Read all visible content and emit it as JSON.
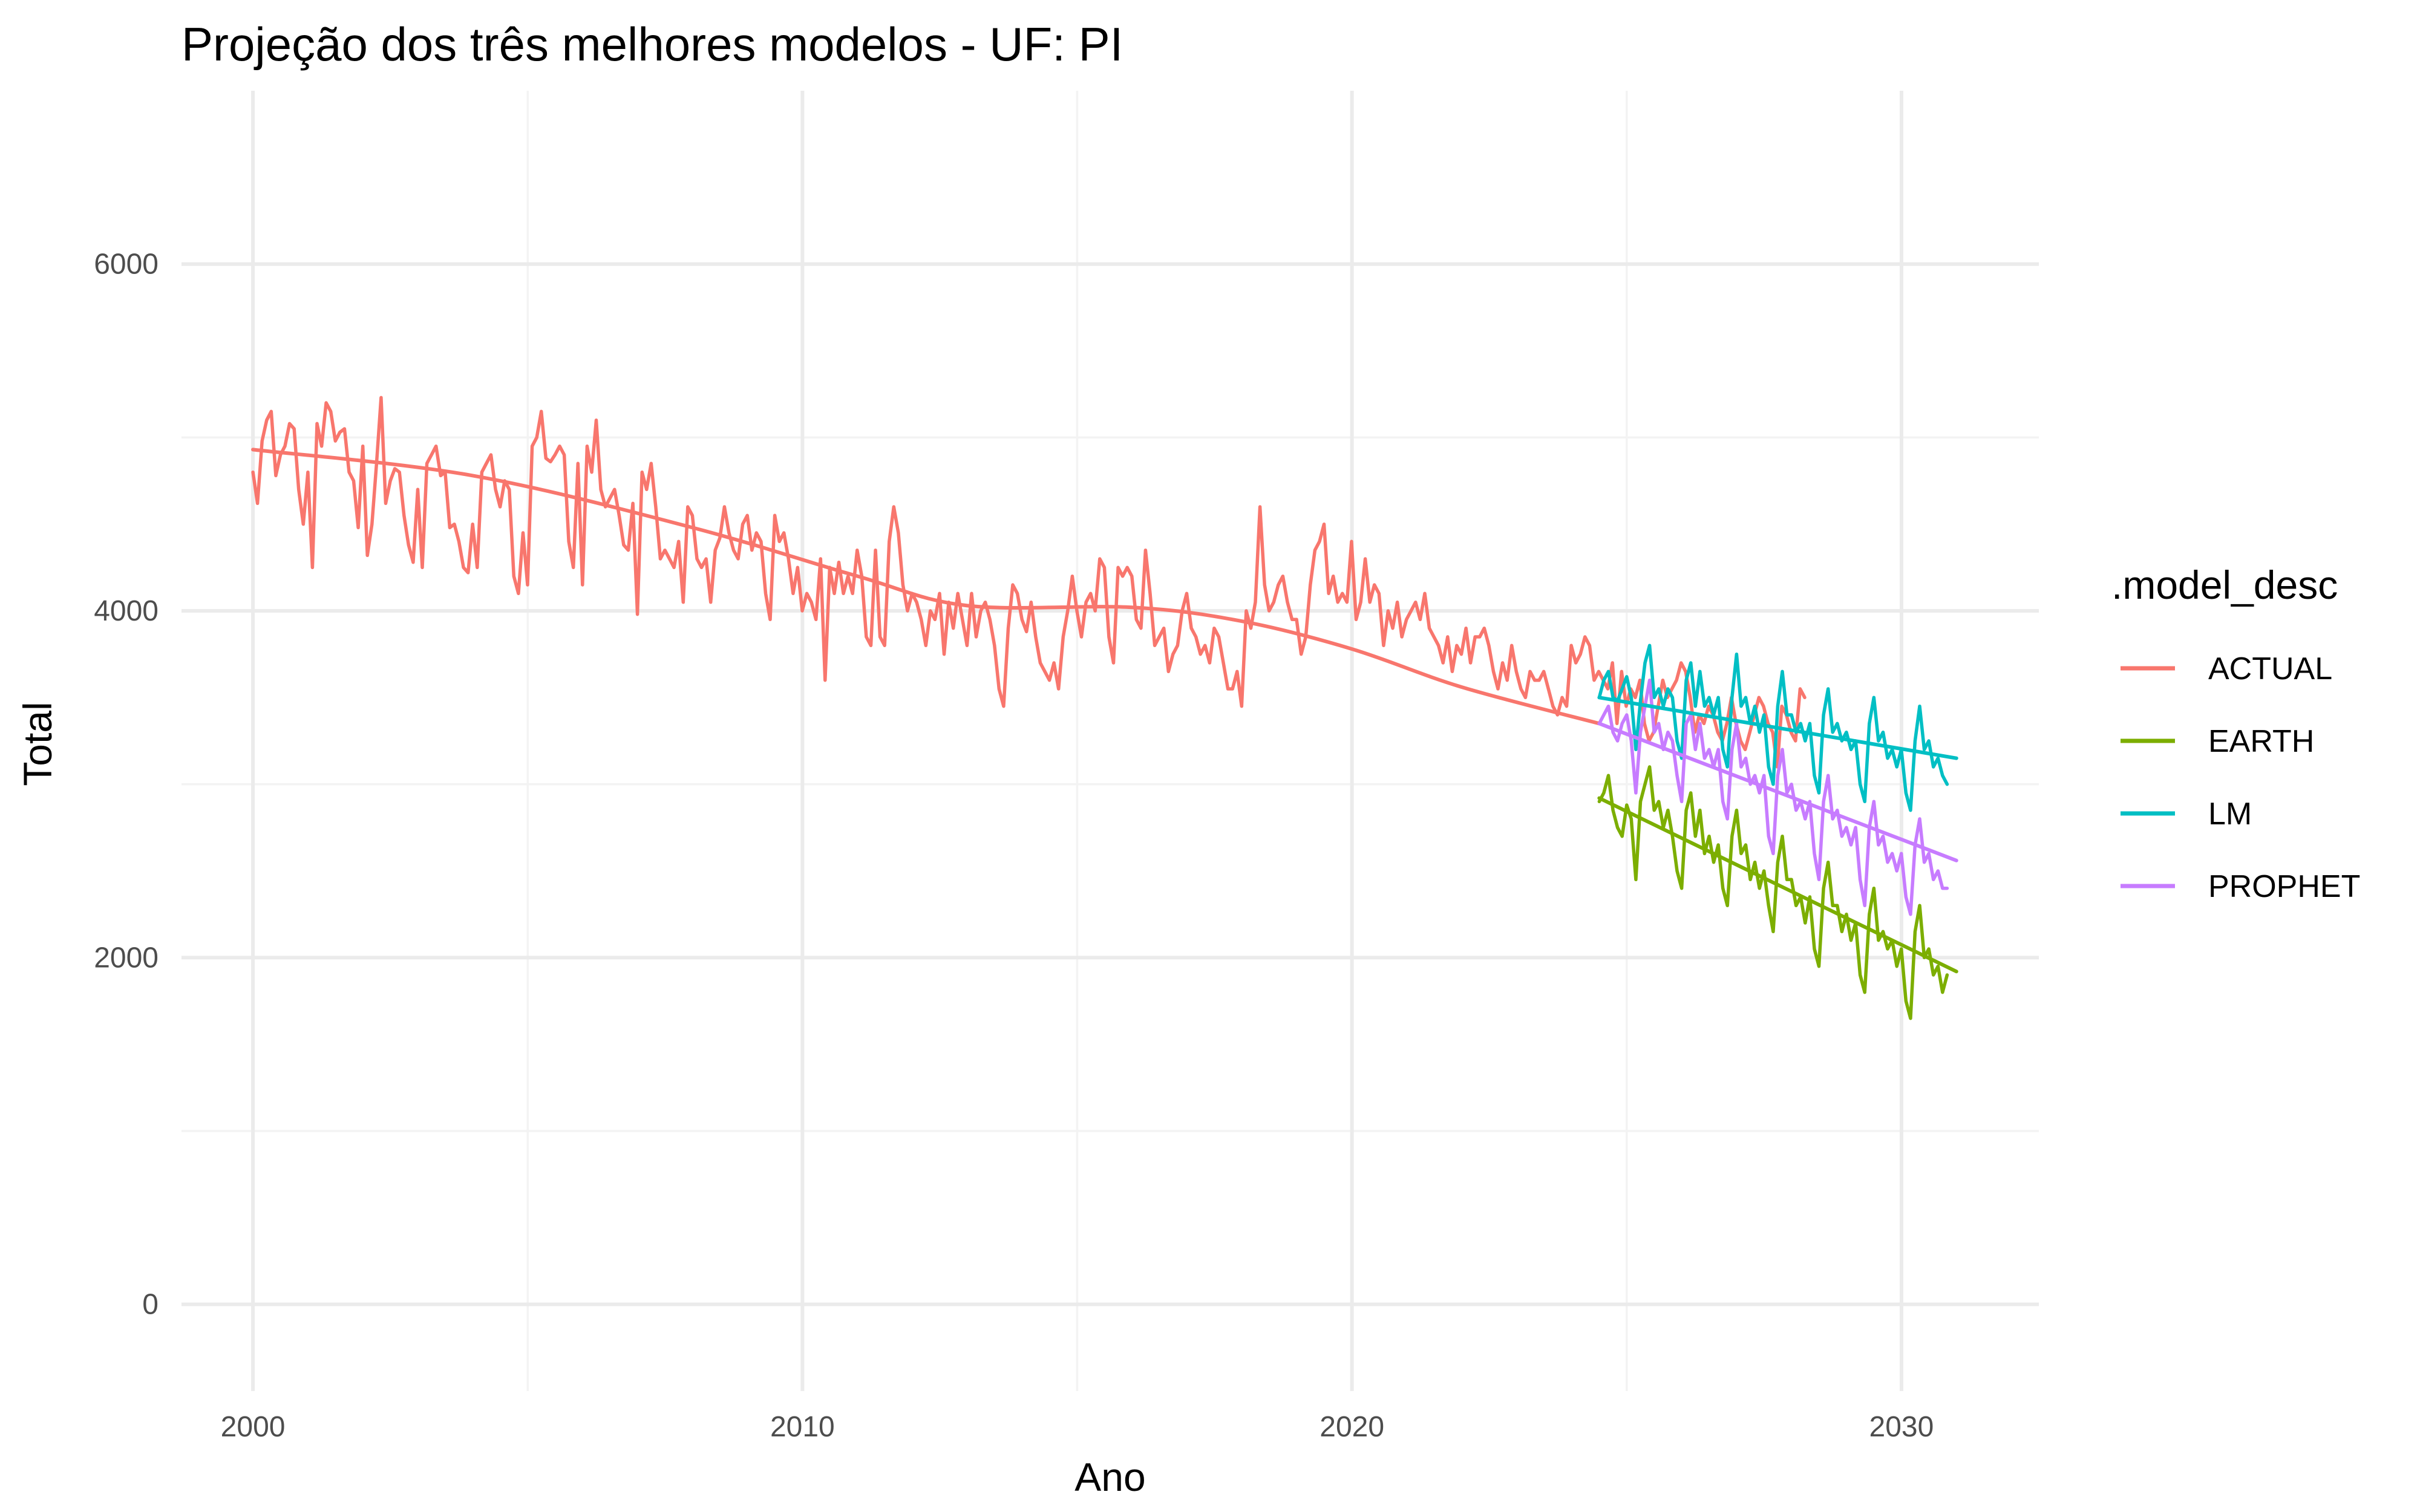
{
  "chart_data": {
    "type": "line",
    "title": "Projeção dos três melhores modelos - UF: PI",
    "xlabel": "Ano",
    "ylabel": "Total",
    "xlim": [
      1998.7,
      2032.5
    ],
    "ylim": [
      -500,
      7000
    ],
    "x_ticks": [
      2000,
      2010,
      2020,
      2030
    ],
    "y_ticks": [
      0,
      2000,
      4000,
      6000
    ],
    "grid": true,
    "legend": {
      "title": ".model_desc",
      "position": "right",
      "entries": [
        {
          "label": "ACTUAL",
          "color": "#F8766D"
        },
        {
          "label": "EARTH",
          "color": "#7CAE00"
        },
        {
          "label": "LM",
          "color": "#00BFC4"
        },
        {
          "label": "PROPHET",
          "color": "#C77CFF"
        }
      ]
    },
    "series": [
      {
        "name": "ACTUAL",
        "color": "#F8766D",
        "x_start": 2000.0,
        "step": 0.0833,
        "values": [
          4800,
          4620,
          4980,
          5100,
          5150,
          4780,
          4900,
          4950,
          5080,
          5050,
          4700,
          4500,
          4800,
          4250,
          5080,
          4950,
          5200,
          5150,
          4980,
          5030,
          5050,
          4800,
          4750,
          4480,
          4950,
          4320,
          4500,
          4850,
          5230,
          4620,
          4750,
          4820,
          4800,
          4550,
          4380,
          4280,
          4700,
          4250,
          4850,
          4900,
          4950,
          4780,
          4800,
          4480,
          4500,
          4400,
          4250,
          4220,
          4500,
          4250,
          4800,
          4850,
          4900,
          4700,
          4600,
          4750,
          4700,
          4200,
          4100,
          4450,
          4150,
          4950,
          5000,
          5150,
          4880,
          4860,
          4900,
          4950,
          4900,
          4400,
          4250,
          4850,
          4150,
          4950,
          4800,
          5100,
          4700,
          4600,
          4650,
          4700,
          4550,
          4380,
          4350,
          4620,
          3980,
          4800,
          4700,
          4850,
          4600,
          4300,
          4350,
          4300,
          4250,
          4400,
          4050,
          4600,
          4550,
          4300,
          4250,
          4300,
          4050,
          4350,
          4420,
          4600,
          4450,
          4350,
          4300,
          4500,
          4550,
          4350,
          4450,
          4400,
          4100,
          3950,
          4550,
          4400,
          4450,
          4300,
          4100,
          4250,
          4000,
          4100,
          4050,
          3950,
          4300,
          3600,
          4250,
          4100,
          4280,
          4100,
          4200,
          4100,
          4350,
          4200,
          3850,
          3800,
          4350,
          3850,
          3800,
          4400,
          4600,
          4450,
          4150,
          4000,
          4100,
          4050,
          3950,
          3800,
          4000,
          3950,
          4100,
          3750,
          4050,
          3900,
          4100,
          3950,
          3800,
          4100,
          3850,
          4000,
          4050,
          3950,
          3800,
          3550,
          3450,
          3900,
          4150,
          4100,
          3950,
          3880,
          4050,
          3850,
          3700,
          3650,
          3600,
          3700,
          3550,
          3850,
          4000,
          4200,
          4000,
          3850,
          4050,
          4100,
          4000,
          4300,
          4250,
          3850,
          3700,
          4250,
          4200,
          4250,
          4200,
          3950,
          3900,
          4350,
          4100,
          3800,
          3850,
          3900,
          3650,
          3750,
          3800,
          4000,
          4100,
          3900,
          3850,
          3750,
          3800,
          3700,
          3900,
          3850,
          3700,
          3550,
          3550,
          3650,
          3450,
          4000,
          3900,
          4050,
          4600,
          4150,
          4000,
          4050,
          4150,
          4200,
          4050,
          3950,
          3950,
          3750,
          3850,
          4150,
          4350,
          4400,
          4500,
          4100,
          4200,
          4050,
          4100,
          4050,
          4400,
          3950,
          4050,
          4300,
          4050,
          4150,
          4100,
          3800,
          4000,
          3900,
          4050,
          3850,
          3950,
          4000,
          4050,
          3950,
          4100,
          3900,
          3850,
          3800,
          3700,
          3850,
          3650,
          3800,
          3750,
          3900,
          3700,
          3850,
          3850,
          3900,
          3800,
          3650,
          3550,
          3700,
          3600,
          3800,
          3650,
          3550,
          3500,
          3650,
          3600,
          3600,
          3650,
          3550,
          3450,
          3400,
          3500,
          3450,
          3800,
          3700,
          3750,
          3850,
          3800,
          3600,
          3650,
          3600,
          3550,
          3700,
          3350,
          3650,
          3450,
          3550,
          3500,
          3600,
          3350,
          3250,
          3300,
          3450,
          3600,
          3500,
          3550,
          3600,
          3700,
          3650,
          3500,
          3300,
          3400,
          3350,
          3450,
          3400,
          3300,
          3250,
          3350,
          3500,
          3350,
          3250,
          3200,
          3300,
          3400,
          3500,
          3450,
          3350,
          3300,
          3100,
          3450,
          3400,
          3300,
          3250,
          3550,
          3500
        ]
      },
      {
        "name": "EARTH",
        "color": "#7CAE00",
        "x_start": 2024.5,
        "step": 0.0833,
        "values": [
          2900,
          2950,
          3050,
          2850,
          2750,
          2700,
          2880,
          2800,
          2450,
          2900,
          3000,
          3100,
          2850,
          2900,
          2750,
          2850,
          2700,
          2500,
          2400,
          2850,
          2950,
          2700,
          2850,
          2600,
          2700,
          2550,
          2650,
          2400,
          2300,
          2700,
          2850,
          2600,
          2650,
          2450,
          2550,
          2400,
          2500,
          2300,
          2150,
          2550,
          2700,
          2450,
          2450,
          2300,
          2350,
          2200,
          2350,
          2050,
          1950,
          2400,
          2550,
          2300,
          2300,
          2150,
          2250,
          2100,
          2200,
          1900,
          1800,
          2250,
          2400,
          2100,
          2150,
          2050,
          2100,
          1950,
          2050,
          1750,
          1650,
          2150,
          2300,
          2000,
          2050,
          1900,
          1950,
          1800,
          1900
        ]
      },
      {
        "name": "LM",
        "color": "#00BFC4",
        "x_start": 2024.5,
        "step": 0.0833,
        "values": [
          3500,
          3600,
          3650,
          3500,
          3480,
          3550,
          3620,
          3500,
          3200,
          3480,
          3700,
          3800,
          3500,
          3550,
          3450,
          3550,
          3500,
          3250,
          3150,
          3600,
          3700,
          3450,
          3650,
          3450,
          3500,
          3400,
          3500,
          3200,
          3100,
          3500,
          3750,
          3450,
          3500,
          3350,
          3450,
          3300,
          3400,
          3100,
          3000,
          3450,
          3650,
          3400,
          3400,
          3300,
          3350,
          3250,
          3350,
          3050,
          2950,
          3400,
          3550,
          3300,
          3350,
          3250,
          3300,
          3200,
          3250,
          3000,
          2900,
          3350,
          3500,
          3250,
          3300,
          3150,
          3200,
          3100,
          3200,
          2950,
          2850,
          3250,
          3450,
          3200,
          3250,
          3100,
          3150,
          3050,
          3000
        ]
      },
      {
        "name": "PROPHET",
        "color": "#C77CFF",
        "x_start": 2024.5,
        "step": 0.0833,
        "values": [
          3350,
          3400,
          3450,
          3300,
          3250,
          3350,
          3400,
          3250,
          2950,
          3300,
          3450,
          3600,
          3300,
          3350,
          3200,
          3300,
          3250,
          3050,
          2900,
          3350,
          3400,
          3200,
          3350,
          3150,
          3200,
          3100,
          3200,
          2900,
          2800,
          3200,
          3350,
          3100,
          3150,
          3000,
          3050,
          2950,
          3050,
          2700,
          2600,
          3050,
          3200,
          2950,
          3000,
          2850,
          2900,
          2800,
          2900,
          2600,
          2450,
          2900,
          3050,
          2800,
          2850,
          2700,
          2750,
          2650,
          2750,
          2450,
          2300,
          2750,
          2900,
          2650,
          2700,
          2550,
          2600,
          2500,
          2600,
          2350,
          2250,
          2650,
          2800,
          2550,
          2600,
          2450,
          2500,
          2400,
          2400
        ]
      }
    ],
    "trends": [
      {
        "name": "ACTUAL",
        "color": "#F8766D",
        "x": [
          2000,
          2004,
          2008,
          2011,
          2013,
          2016,
          2018,
          2020,
          2022,
          2024.5
        ],
        "y": [
          4930,
          4780,
          4480,
          4200,
          4030,
          4020,
          3940,
          3780,
          3560,
          3350
        ]
      },
      {
        "name": "EARTH",
        "color": "#7CAE00",
        "x": [
          2024.5,
          2031
        ],
        "y": [
          2920,
          1920
        ]
      },
      {
        "name": "LM",
        "color": "#00BFC4",
        "x": [
          2024.5,
          2031
        ],
        "y": [
          3500,
          3150
        ]
      },
      {
        "name": "PROPHET",
        "color": "#C77CFF",
        "x": [
          2024.5,
          2031
        ],
        "y": [
          3350,
          2560
        ]
      }
    ]
  }
}
